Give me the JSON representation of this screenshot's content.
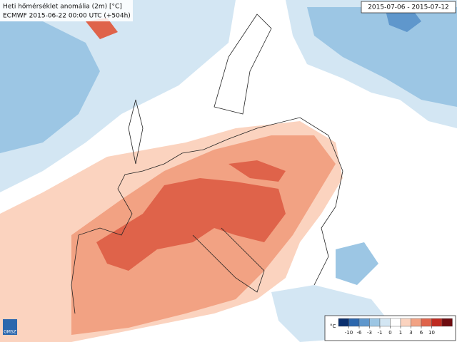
{
  "title": "Heti hőmérséklet anomália (2m) [°C]",
  "subtitle": "ECMWF 2015-06-22 00:00 UTC (+504h)",
  "period": "2015-07-06 - 2015-07-12",
  "logo": "OMSZ",
  "legend": {
    "unit": "°C",
    "ticks": [
      -10,
      -6,
      -3,
      -1,
      0,
      1,
      3,
      6,
      10
    ],
    "colors": [
      "#0a2f6e",
      "#2c67ad",
      "#5f97cc",
      "#9cc6e4",
      "#d3e6f3",
      "#ffffff",
      "#fbd3bf",
      "#f2a283",
      "#df634a",
      "#bf2a20",
      "#6e0c10"
    ]
  }
}
